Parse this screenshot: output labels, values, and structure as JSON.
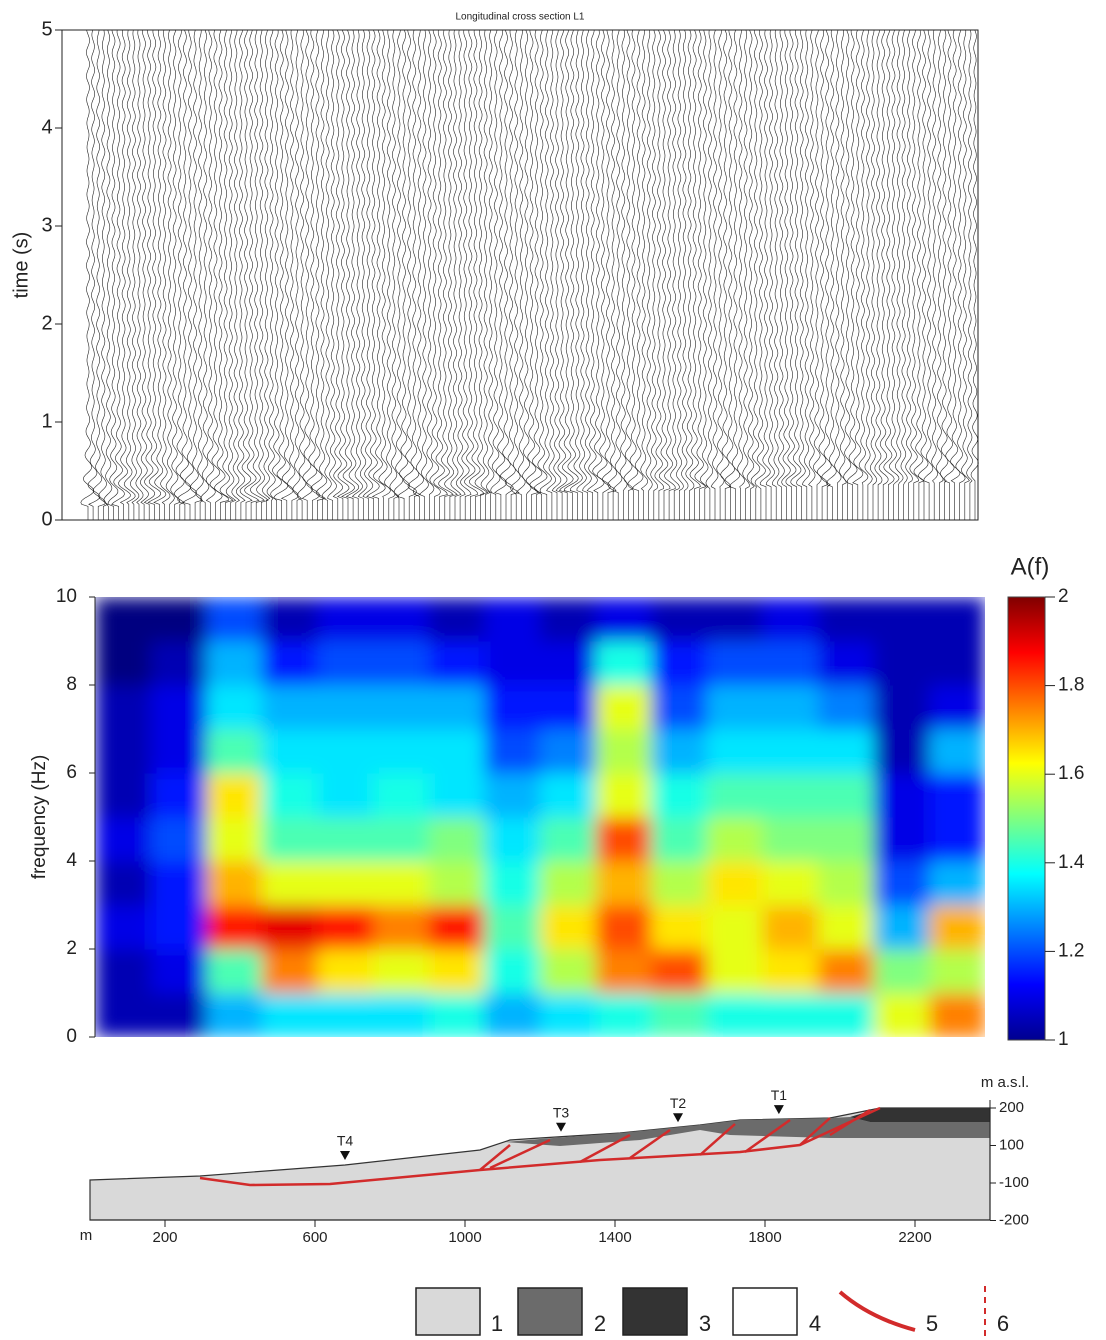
{
  "chart_data": [
    {
      "type": "seismogram",
      "title": "Longitudinal cross section L1",
      "y_label": "time (s)",
      "ylim": [
        0,
        5
      ],
      "yticks": [
        0,
        1,
        2,
        3,
        4,
        5
      ]
    },
    {
      "type": "heatmap",
      "y_label": "frequency (Hz)",
      "ylim": [
        0,
        10
      ],
      "yticks": [
        0,
        2,
        4,
        6,
        8,
        10
      ],
      "colormap": "jet",
      "z": [
        [
          1.05,
          1.05,
          1.3,
          1.35,
          1.35,
          1.35,
          1.4,
          1.3,
          1.35,
          1.4,
          1.45,
          1.4,
          1.4,
          1.4,
          1.6,
          1.75
        ],
        [
          1.05,
          1.1,
          1.45,
          1.75,
          1.65,
          1.6,
          1.65,
          1.4,
          1.55,
          1.75,
          1.8,
          1.6,
          1.65,
          1.75,
          1.5,
          1.55
        ],
        [
          1.1,
          1.15,
          1.85,
          1.9,
          1.85,
          1.75,
          1.85,
          1.45,
          1.65,
          1.8,
          1.65,
          1.6,
          1.7,
          1.6,
          1.3,
          1.7
        ],
        [
          1.05,
          1.15,
          1.7,
          1.6,
          1.6,
          1.6,
          1.55,
          1.4,
          1.55,
          1.7,
          1.55,
          1.65,
          1.6,
          1.55,
          1.2,
          1.3
        ],
        [
          1.1,
          1.2,
          1.6,
          1.45,
          1.45,
          1.45,
          1.5,
          1.35,
          1.45,
          1.8,
          1.45,
          1.55,
          1.5,
          1.5,
          1.1,
          1.15
        ],
        [
          1.05,
          1.15,
          1.65,
          1.4,
          1.35,
          1.4,
          1.35,
          1.3,
          1.35,
          1.6,
          1.4,
          1.45,
          1.45,
          1.45,
          1.1,
          1.15
        ],
        [
          1.05,
          1.1,
          1.45,
          1.35,
          1.35,
          1.35,
          1.35,
          1.2,
          1.25,
          1.55,
          1.3,
          1.35,
          1.35,
          1.35,
          1.05,
          1.3
        ],
        [
          1.05,
          1.1,
          1.35,
          1.3,
          1.3,
          1.3,
          1.3,
          1.15,
          1.15,
          1.6,
          1.2,
          1.3,
          1.3,
          1.25,
          1.05,
          1.1
        ],
        [
          1.0,
          1.05,
          1.3,
          1.15,
          1.2,
          1.2,
          1.15,
          1.1,
          1.1,
          1.4,
          1.15,
          1.2,
          1.2,
          1.1,
          1.05,
          1.05
        ],
        [
          1.0,
          1.0,
          1.2,
          1.05,
          1.1,
          1.1,
          1.05,
          1.1,
          1.05,
          1.1,
          1.05,
          1.05,
          1.1,
          1.05,
          1.05,
          1.05
        ]
      ],
      "colorbar": {
        "label": "A(f)",
        "lim": [
          1,
          2
        ],
        "ticks": [
          1,
          1.2,
          1.4,
          1.6,
          1.8,
          2
        ]
      }
    },
    {
      "type": "profile",
      "x_label": "m",
      "y_label": "m a.s.l.",
      "xlim": [
        0,
        2400
      ],
      "xticks": [
        200,
        600,
        1000,
        1400,
        1800,
        2200
      ],
      "yticks": [
        200,
        100,
        -100,
        -200
      ],
      "stations": [
        {
          "label": "T4",
          "x": 680
        },
        {
          "label": "T3",
          "x": 1256
        },
        {
          "label": "T2",
          "x": 1568
        },
        {
          "label": "T1",
          "x": 1837
        }
      ],
      "legend": [
        {
          "label": "1",
          "color": "#d9d9d9"
        },
        {
          "label": "2",
          "color": "#6b6b6b"
        },
        {
          "label": "3",
          "color": "#333333"
        },
        {
          "label": "4",
          "color": "#ffffff"
        },
        {
          "label": "5",
          "color": "#d22b2b"
        },
        {
          "label": "6",
          "color": "#d22b2b"
        }
      ]
    }
  ]
}
